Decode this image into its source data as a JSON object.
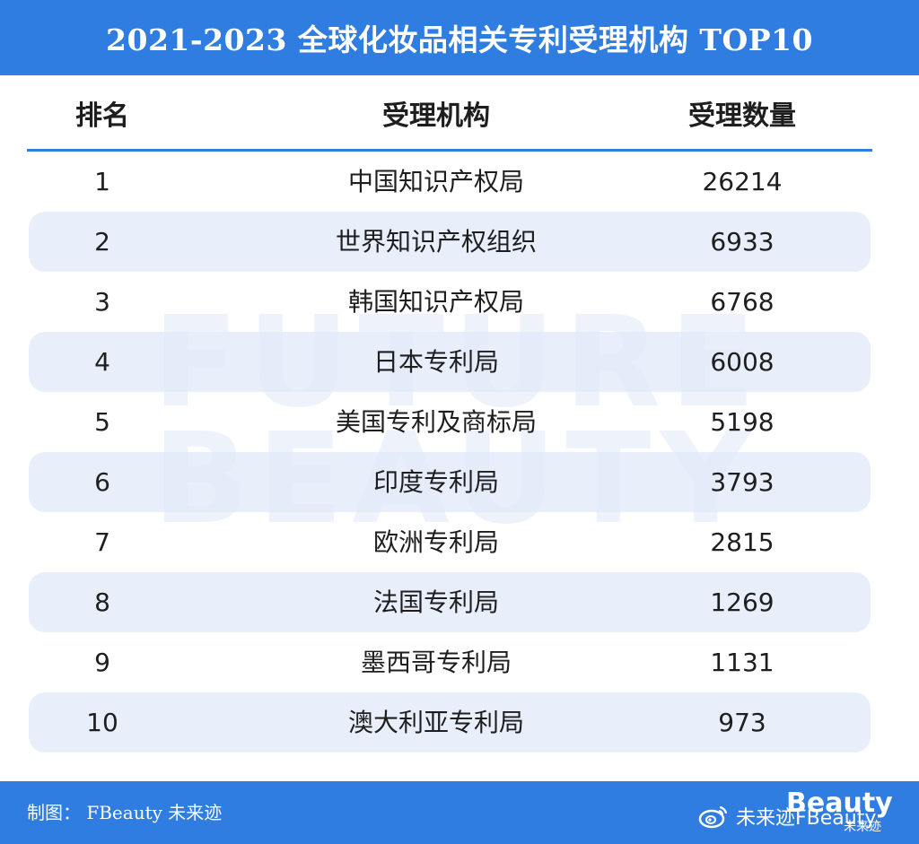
{
  "header": {
    "title": "2021-2023 全球化妆品相关专利受理机构 TOP10"
  },
  "watermark": "FUTURE\nBEAUTY",
  "table": {
    "columns": [
      "排名",
      "受理机构",
      "受理数量"
    ],
    "rows": [
      {
        "rank": "1",
        "org": "中国知识产权局",
        "count": "26214"
      },
      {
        "rank": "2",
        "org": "世界知识产权组织",
        "count": "6933"
      },
      {
        "rank": "3",
        "org": "韩国知识产权局",
        "count": "6768"
      },
      {
        "rank": "4",
        "org": "日本专利局",
        "count": "6008"
      },
      {
        "rank": "5",
        "org": "美国专利及商标局",
        "count": "5198"
      },
      {
        "rank": "6",
        "org": "印度专利局",
        "count": "3793"
      },
      {
        "rank": "7",
        "org": "欧洲专利局",
        "count": "2815"
      },
      {
        "rank": "8",
        "org": "法国专利局",
        "count": "1269"
      },
      {
        "rank": "9",
        "org": "墨西哥专利局",
        "count": "1131"
      },
      {
        "rank": "10",
        "org": "澳大利亚专利局",
        "count": "973"
      }
    ]
  },
  "footer": {
    "credit": "制图： FBeauty 未来迹",
    "brand_logo": "Beauty",
    "brand_sub": "未来迹",
    "weibo_handle": "未来迹FBeauty"
  },
  "colors": {
    "accent": "#2f7de1",
    "stripe": "#e0e9fa"
  }
}
